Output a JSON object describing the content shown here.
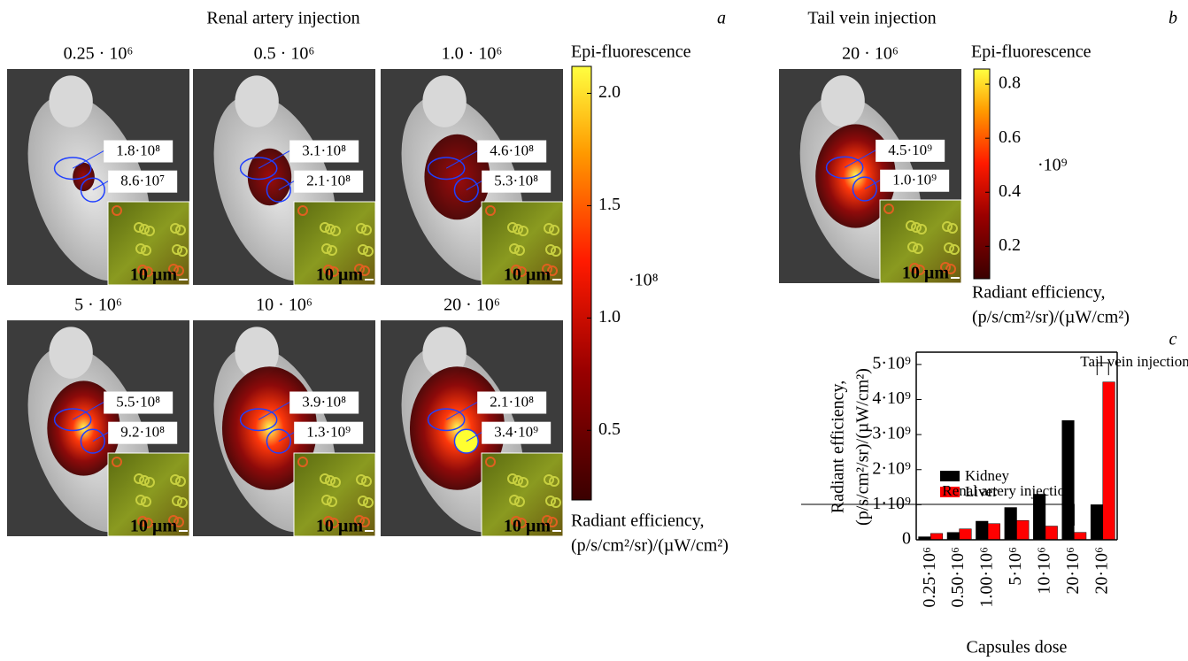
{
  "panel_a": {
    "letter": "a",
    "title": "Renal artery injection",
    "images": [
      {
        "dose": "0.25 · 10⁶",
        "labels": [
          "1.8·10⁸",
          "8.6·10⁷"
        ]
      },
      {
        "dose": "0.5 · 10⁶",
        "labels": [
          "3.1·10⁸",
          "2.1·10⁸"
        ]
      },
      {
        "dose": "1.0 · 10⁶",
        "labels": [
          "4.6·10⁸",
          "5.3·10⁸"
        ]
      },
      {
        "dose": "5 · 10⁶",
        "labels": [
          "5.5·10⁸",
          "9.2·10⁸"
        ]
      },
      {
        "dose": "10 · 10⁶",
        "labels": [
          "3.9·10⁸",
          "1.3·10⁹"
        ]
      },
      {
        "dose": "20 · 10⁶",
        "labels": [
          "2.1·10⁸",
          "3.4·10⁹"
        ]
      }
    ],
    "colorbar": {
      "title": "Epi-fluorescence",
      "lim": [
        0.19,
        2.12
      ],
      "ticks": [
        {
          "value": 0.5,
          "label": "0.5"
        },
        {
          "value": 1,
          "label": "1.0"
        },
        {
          "value": 1.5,
          "label": "1.5"
        },
        {
          "value": 2,
          "label": "2.0"
        }
      ],
      "multiplier": "·10⁸",
      "unit_line1": "Radiant efficiency,",
      "unit_line2": "(p/s/cm²/sr)/(µW/cm²)"
    }
  },
  "panel_b": {
    "letter": "b",
    "title": "Tail vein injection",
    "images": [
      {
        "dose": "20 · 10⁶",
        "labels": [
          "4.5·10⁹",
          "1.0·10⁹"
        ]
      }
    ],
    "colorbar": {
      "title": "Epi-fluorescence",
      "lim": [
        0.08,
        0.856
      ],
      "ticks": [
        0.2,
        0.4,
        0.6,
        0.8
      ],
      "multiplier": "·10⁹",
      "unit_line1": "Radiant efficiency,",
      "unit_line2": "(p/s/cm²/sr)/(µW/cm²)"
    }
  },
  "scale_bar": "10 µm",
  "chart_data": {
    "type": "bar",
    "letter": "c",
    "ylabel_line1": "Radiant efficiency,",
    "ylabel_line2": "(p/s/cm²/sr)/(µW/cm²)",
    "xlabel": "Capsules dose",
    "categories": [
      "0.25·10⁶",
      "0.50·10⁶",
      "1.00·10⁶",
      "5·10⁶",
      "10·10⁶",
      "20·10⁶",
      "20·10⁶"
    ],
    "series": [
      {
        "name": "Kidney",
        "color": "#000000",
        "values": [
          86000000,
          210000000,
          530000000,
          920000000,
          1300000000,
          3400000000,
          1000000000
        ]
      },
      {
        "name": "Liver",
        "color": "#ff0000",
        "values": [
          180000000,
          310000000,
          460000000,
          550000000,
          390000000,
          210000000,
          4500000000
        ]
      }
    ],
    "ylim": [
      0,
      5350000000
    ],
    "yticks": [
      0,
      {
        "value": 1000000000,
        "label": "1·10⁹"
      },
      {
        "value": 2000000000,
        "label": "2·10⁹"
      },
      {
        "value": 3000000000,
        "label": "3·10⁹"
      },
      {
        "value": 4000000000,
        "label": "4·10⁹"
      },
      {
        "value": 5000000000,
        "label": "5·10⁹"
      }
    ],
    "annotations": [
      "Renal artery injection",
      "Tail vein injection"
    ]
  }
}
